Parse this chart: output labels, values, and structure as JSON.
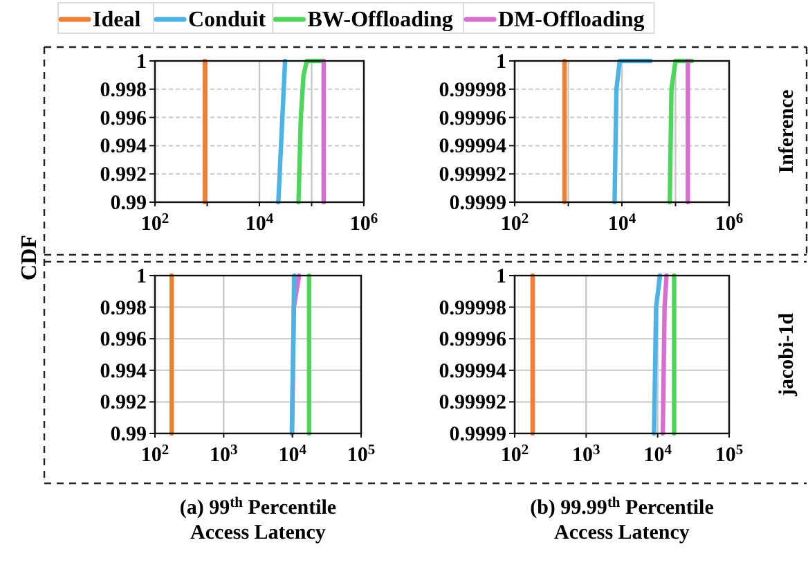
{
  "chart_data": [
    {
      "type": "line",
      "ylabel": "CDF",
      "legend": "top",
      "grid": true,
      "log": "x",
      "xlim": [
        100,
        1000000
      ],
      "xticks": [
        {
          "value": 100,
          "label": "10$^{2}$"
        },
        {
          "value": 1000,
          "label": null
        },
        {
          "value": 10000,
          "label": "10$^{4}$"
        },
        {
          "value": 100000,
          "label": null
        },
        {
          "value": 1000000,
          "label": "10$^{6}$"
        }
      ],
      "ylim": [
        0.99,
        1
      ],
      "yticks": [
        0.99,
        0.992,
        0.994,
        0.996,
        0.998,
        1
      ],
      "series": [
        {
          "name": "Ideal",
          "color": "#f07f2f",
          "x": [
            900,
            900
          ],
          "values": [
            0.99,
            1
          ]
        },
        {
          "name": "Conduit",
          "color": "#4cb3e6",
          "x": [
            23000,
            31000
          ],
          "values": [
            0.99,
            1
          ]
        },
        {
          "name": "BW-Offloading",
          "color": "#4cd65a",
          "x": [
            56000,
            62000,
            70000,
            81000,
            170000
          ],
          "values": [
            0.99,
            0.996,
            0.999,
            1,
            1
          ]
        },
        {
          "name": "DM-Offloading",
          "color": "#d86fd0",
          "x": [
            170000,
            170000
          ],
          "values": [
            0.99,
            1
          ]
        }
      ]
    },
    {
      "type": "line",
      "y2label": "Inference",
      "grid": true,
      "log": "x",
      "xlim": [
        100,
        1000000
      ],
      "xticks": [
        {
          "value": 100,
          "label": "10$^{2}$"
        },
        {
          "value": 1000,
          "label": null
        },
        {
          "value": 10000,
          "label": "10$^{4}$"
        },
        {
          "value": 100000,
          "label": null
        },
        {
          "value": 1000000,
          "label": "10$^{6}$"
        }
      ],
      "ylim": [
        0.9999,
        1
      ],
      "yticks": [
        0.9999,
        0.99992,
        0.99994,
        0.99996,
        0.99998,
        1
      ],
      "series": [
        {
          "color": "#f07f2f",
          "x": [
            850,
            850
          ],
          "values": [
            0.9999,
            1
          ]
        },
        {
          "color": "#4cb3e6",
          "x": [
            7300,
            7900,
            9100,
            34000
          ],
          "values": [
            0.9999,
            0.99998,
            1,
            1
          ]
        },
        {
          "color": "#4cd65a",
          "x": [
            78000,
            84000,
            100000,
            200000
          ],
          "values": [
            0.9999,
            0.99998,
            1,
            1
          ]
        },
        {
          "color": "#d86fd0",
          "x": [
            170000,
            170000
          ],
          "values": [
            0.9999,
            1
          ]
        }
      ]
    },
    {
      "type": "line",
      "xlabel": "(a) 99$^{th}$ Percentile Access Latency",
      "grid": true,
      "log": "x",
      "xlim": [
        100,
        100000
      ],
      "xticks": [
        {
          "value": 100,
          "label": "10$^{2}$"
        },
        {
          "value": 1000,
          "label": "10$^{3}$"
        },
        {
          "value": 10000,
          "label": "10$^{4}$"
        },
        {
          "value": 100000,
          "label": "10$^{5}$"
        }
      ],
      "ylim": [
        0.99,
        1
      ],
      "yticks": [
        0.99,
        0.992,
        0.994,
        0.996,
        0.998,
        1
      ],
      "series": [
        {
          "color": "#f07f2f",
          "x": [
            175,
            175
          ],
          "values": [
            0.99,
            1
          ]
        },
        {
          "color": "#d86fd0",
          "x": [
            9900,
            10500,
            12500
          ],
          "values": [
            0.99,
            0.998,
            1
          ]
        },
        {
          "color": "#4cb3e6",
          "x": [
            9800,
            10700
          ],
          "values": [
            0.99,
            1
          ]
        },
        {
          "color": "#4cd65a",
          "x": [
            17500,
            17500
          ],
          "values": [
            0.99,
            1
          ]
        }
      ]
    },
    {
      "type": "line",
      "xlabel": "(b) 99.99$^{th}$ Percentile Access Latency",
      "y2label": "jacobi-1d",
      "grid": true,
      "log": "x",
      "xlim": [
        100,
        100000
      ],
      "xticks": [
        {
          "value": 100,
          "label": "10$^{2}$"
        },
        {
          "value": 1000,
          "label": "10$^{3}$"
        },
        {
          "value": 10000,
          "label": "10$^{4}$"
        },
        {
          "value": 100000,
          "label": "10$^{5}$"
        }
      ],
      "ylim": [
        0.9999,
        1
      ],
      "yticks": [
        0.9999,
        0.99992,
        0.99994,
        0.99996,
        0.99998,
        1
      ],
      "series": [
        {
          "color": "#f07f2f",
          "x": [
            178,
            178
          ],
          "values": [
            0.9999,
            1
          ]
        },
        {
          "color": "#4cb3e6",
          "x": [
            8900,
            9500,
            10800
          ],
          "values": [
            0.9999,
            0.99998,
            1
          ]
        },
        {
          "color": "#d86fd0",
          "x": [
            11800,
            12500,
            13300
          ],
          "values": [
            0.9999,
            0.99998,
            1
          ]
        },
        {
          "color": "#4cd65a",
          "x": [
            17000,
            17000
          ],
          "values": [
            0.9999,
            1
          ]
        }
      ]
    }
  ]
}
